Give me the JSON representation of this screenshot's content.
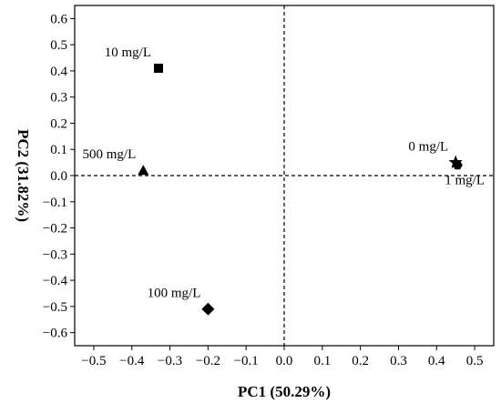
{
  "chart_data": {
    "type": "scatter",
    "xlabel": "PC1 (50.29%)",
    "ylabel": "PC2 (31.82%)",
    "xlim": [
      -0.55,
      0.55
    ],
    "ylim": [
      -0.65,
      0.65
    ],
    "xticks": [
      "-0.5",
      "-0.4",
      "-0.3",
      "-0.2",
      "-0.1",
      "0.0",
      "0.1",
      "0.2",
      "0.3",
      "0.4",
      "0.5"
    ],
    "yticks": [
      "-0.6",
      "-0.5",
      "-0.4",
      "-0.3",
      "-0.2",
      "-0.1",
      "0.0",
      "0.1",
      "0.2",
      "0.3",
      "0.4",
      "0.5",
      "0.6"
    ],
    "reference_lines": {
      "x": 0,
      "y": 0,
      "style": "dashed"
    },
    "grid": false,
    "points": [
      {
        "label": "10 mg/L",
        "x": -0.33,
        "y": 0.41,
        "marker": "square",
        "label_position": "upper-left"
      },
      {
        "label": "500 mg/L",
        "x": -0.37,
        "y": 0.02,
        "marker": "triangle",
        "label_position": "upper-left"
      },
      {
        "label": "100 mg/L",
        "x": -0.2,
        "y": -0.51,
        "marker": "diamond",
        "label_position": "upper-left"
      },
      {
        "label": "0 mg/L",
        "x": 0.45,
        "y": 0.05,
        "marker": "star",
        "label_position": "upper-left"
      },
      {
        "label": "1 mg/L",
        "x": 0.455,
        "y": 0.04,
        "marker": "hexagon",
        "label_position": "lower-right"
      }
    ]
  }
}
